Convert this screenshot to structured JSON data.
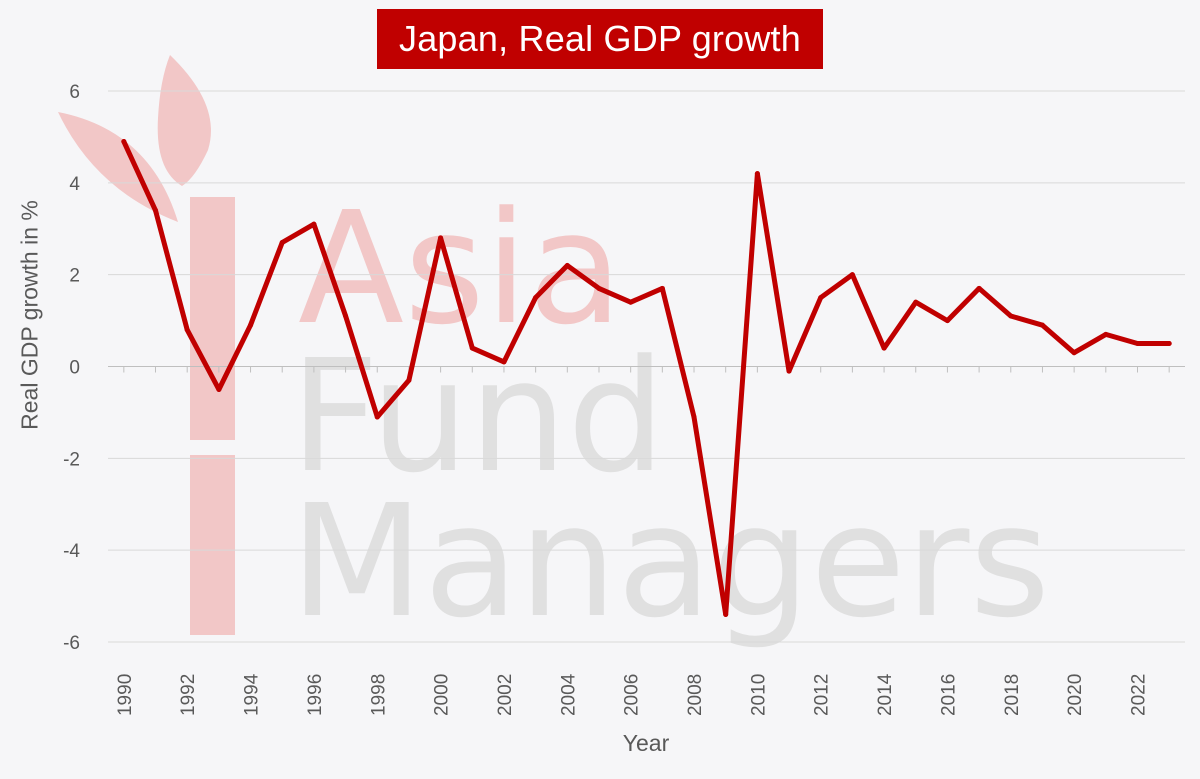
{
  "watermark": {
    "line1": "Asia",
    "line2": "Fund",
    "line3": "Managers",
    "color_line1": "#f2c7c7",
    "color_lines": "#e0e0e0",
    "leaf_color": "#f2c7c7"
  },
  "chart_data": {
    "type": "line",
    "title": "Japan, Real GDP growth",
    "xlabel": "Year",
    "ylabel": "Real GDP growth in %",
    "ylim": [
      -6,
      6
    ],
    "yticks": [
      6,
      4,
      2,
      0,
      -2,
      -4,
      -6
    ],
    "xticks": [
      1990,
      1992,
      1994,
      1996,
      1998,
      2000,
      2002,
      2004,
      2006,
      2008,
      2010,
      2012,
      2014,
      2016,
      2018,
      2020,
      2022
    ],
    "grid": true,
    "line_color": "#c00000",
    "series": [
      {
        "x": [
          1990,
          1991,
          1992,
          1993,
          1994,
          1995,
          1996,
          1997,
          1998,
          1999,
          2000,
          2001,
          2002,
          2003,
          2004,
          2005,
          2006,
          2007,
          2008,
          2009,
          2010,
          2011,
          2012,
          2013,
          2014,
          2015,
          2016,
          2017,
          2018,
          2019,
          2020,
          2021,
          2022,
          2023
        ],
        "values": [
          4.9,
          3.4,
          0.8,
          -0.5,
          0.9,
          2.7,
          3.1,
          1.1,
          -1.1,
          -0.3,
          2.8,
          0.4,
          0.1,
          1.5,
          2.2,
          1.7,
          1.4,
          1.7,
          -1.1,
          -5.4,
          4.2,
          -0.1,
          1.5,
          2.0,
          0.4,
          1.4,
          1.0,
          1.7,
          1.1,
          0.9,
          0.3,
          0.7,
          0.5,
          0.5
        ]
      }
    ]
  }
}
